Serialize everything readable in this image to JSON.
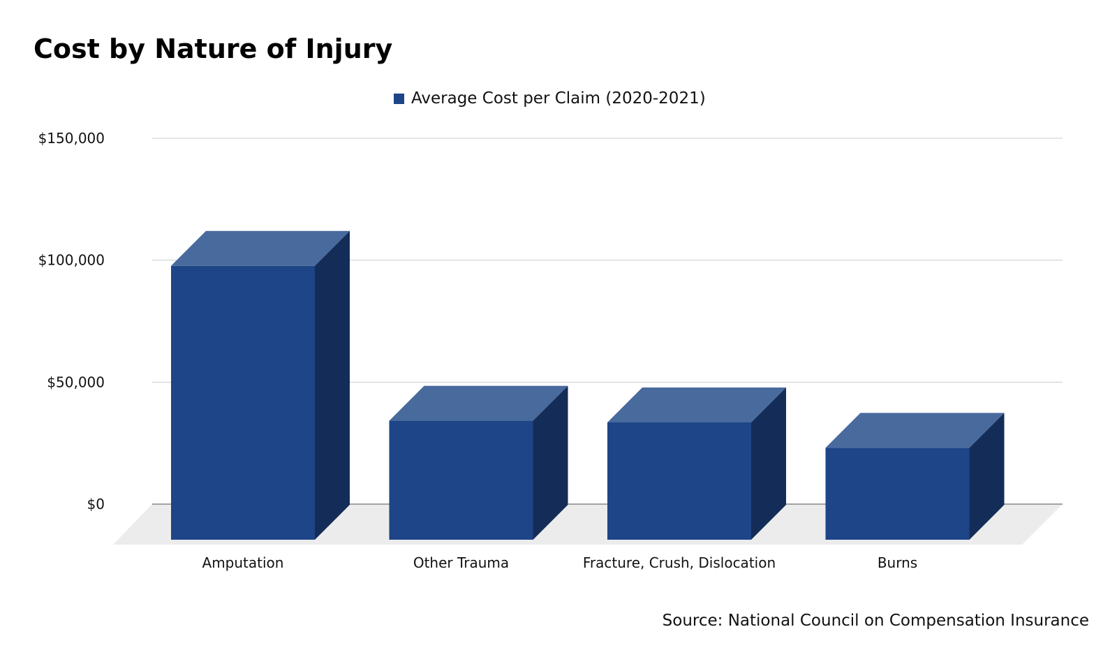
{
  "chart_data": {
    "type": "bar",
    "title": "Cost by Nature of Injury",
    "xlabel": "",
    "ylabel": "",
    "categories": [
      "Amputation",
      "Other Trauma",
      "Fracture, Crush, Dislocation",
      "Burns"
    ],
    "series": [
      {
        "name": "Average Cost per Claim (2020-2021)",
        "values": [
          112000,
          48500,
          47800,
          37400
        ],
        "color": "#1d4587"
      }
    ],
    "ylim": [
      0,
      150000
    ],
    "yticks": [
      0,
      50000,
      100000,
      150000
    ],
    "ytick_labels": [
      "$0",
      "$50,000",
      "$100,000",
      "$150,000"
    ],
    "grid": true,
    "legend_position": "top-center",
    "style": "3d-bar",
    "colors": {
      "bar_front": "#1d4587",
      "bar_top": "#496a9d",
      "bar_side": "#142d58",
      "floor": "#ececec",
      "gridline": "#cccccc",
      "baseline": "#888888"
    }
  },
  "source_note": "Source: National Council on Compensation Insurance"
}
